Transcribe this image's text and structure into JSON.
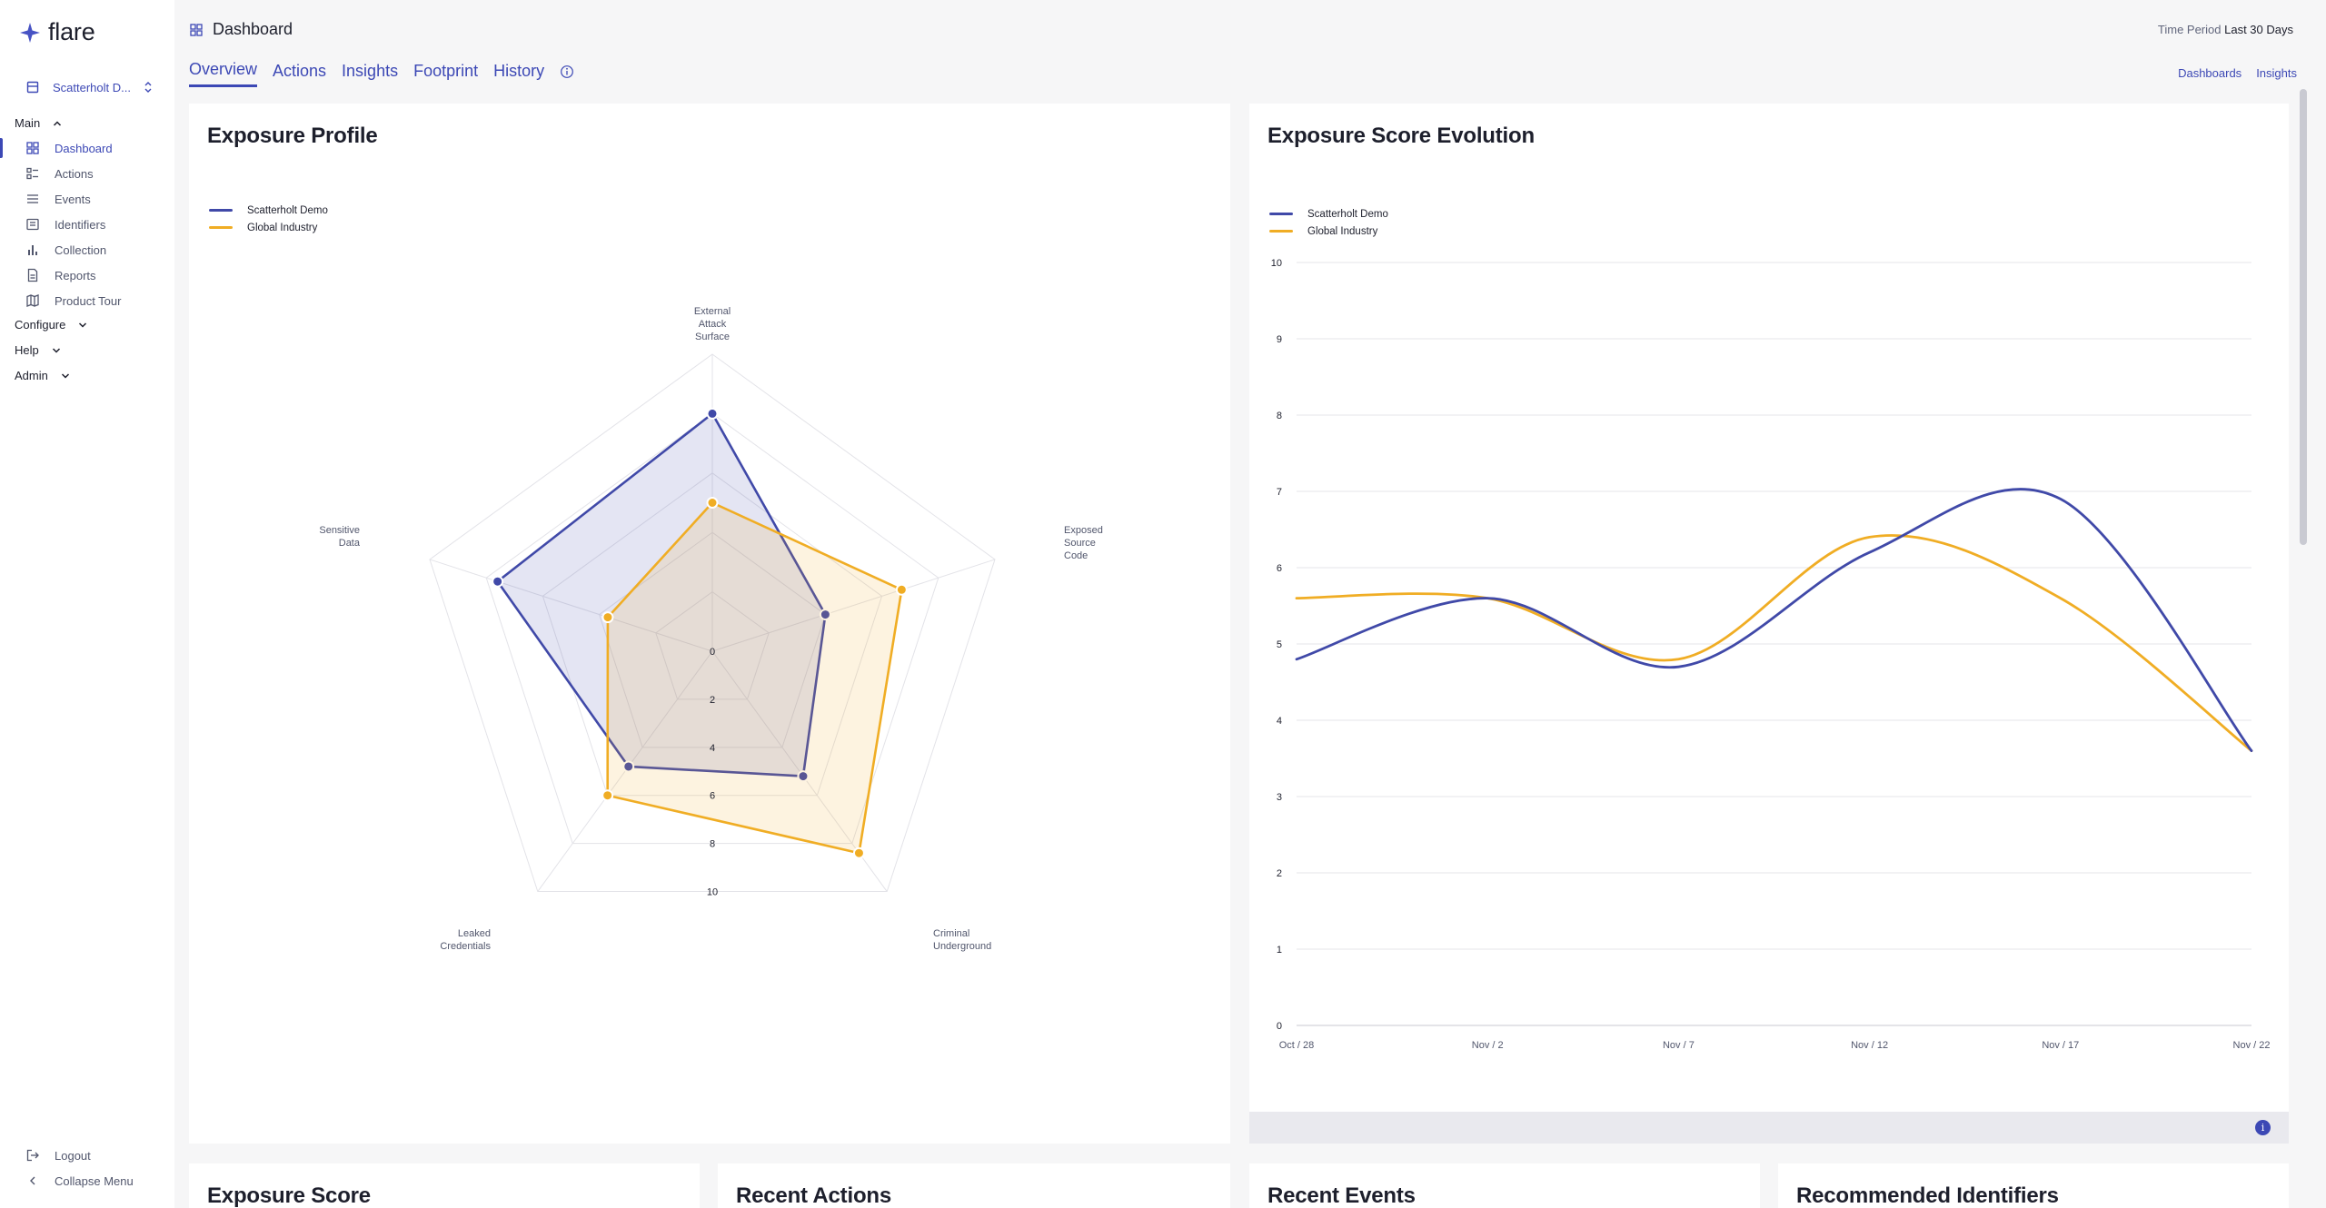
{
  "app": {
    "name": "flare"
  },
  "sidebar": {
    "org_name": "Scatterholt D...",
    "sections": [
      {
        "label": "Main"
      },
      {
        "label": "Configure"
      },
      {
        "label": "Help"
      },
      {
        "label": "Admin"
      }
    ],
    "items": [
      {
        "label": "Dashboard",
        "icon": "grid-icon"
      },
      {
        "label": "Actions",
        "icon": "actions-icon"
      },
      {
        "label": "Events",
        "icon": "list-icon"
      },
      {
        "label": "Identifiers",
        "icon": "identifiers-icon"
      },
      {
        "label": "Collection",
        "icon": "bar-chart-icon"
      },
      {
        "label": "Reports",
        "icon": "document-icon"
      },
      {
        "label": "Product Tour",
        "icon": "map-icon"
      }
    ],
    "footer": [
      {
        "label": "Logout",
        "icon": "logout-icon"
      },
      {
        "label": "Collapse Menu",
        "icon": "chevron-left-icon"
      }
    ]
  },
  "header": {
    "title": "Dashboard",
    "time_period_label": "Time Period",
    "time_period_value": "Last 30 Days",
    "tabs": [
      {
        "label": "Overview"
      },
      {
        "label": "Actions"
      },
      {
        "label": "Insights"
      },
      {
        "label": "Footprint"
      },
      {
        "label": "History"
      }
    ],
    "links": [
      {
        "label": "Dashboards"
      },
      {
        "label": "Insights"
      }
    ]
  },
  "colors": {
    "accent": "#3c48b5",
    "series_1": "#4049a8",
    "series_2": "#f0ad24"
  },
  "cards": {
    "exposure_profile": "Exposure Profile",
    "exposure_score_evolution": "Exposure Score Evolution",
    "exposure_score": "Exposure Score",
    "recent_actions": "Recent Actions",
    "recent_events": "Recent Events",
    "recommended_identifiers": "Recommended Identifiers"
  },
  "chart_data": [
    {
      "type": "radar",
      "title": "Exposure Profile",
      "axes": [
        "External Attack Surface",
        "Exposed Source Code",
        "Criminal Underground",
        "Leaked Credentials",
        "Sensitive Data"
      ],
      "axis_label_lines": [
        [
          "External",
          "Attack",
          "Surface"
        ],
        [
          "Exposed",
          "Source",
          "Code"
        ],
        [
          "Criminal",
          "Underground"
        ],
        [
          "Leaked",
          "Credentials"
        ],
        [
          "Sensitive",
          "Data"
        ]
      ],
      "radial_ticks": [
        0,
        2,
        4,
        6,
        8,
        10
      ],
      "range": [
        0,
        10
      ],
      "legend_position": "top-left",
      "series": [
        {
          "name": "Scatterholt Demo",
          "values": [
            8.0,
            4.0,
            5.2,
            4.8,
            7.6
          ]
        },
        {
          "name": "Global Industry",
          "values": [
            5.0,
            6.7,
            8.4,
            6.0,
            3.7
          ]
        }
      ]
    },
    {
      "type": "line",
      "title": "Exposure Score Evolution",
      "x": [
        "Oct / 28",
        "Nov / 2",
        "Nov / 7",
        "Nov / 12",
        "Nov / 17",
        "Nov / 22"
      ],
      "ylim": [
        0,
        10
      ],
      "yticks": [
        0,
        1,
        2,
        3,
        4,
        5,
        6,
        7,
        8,
        9,
        10
      ],
      "grid": true,
      "legend_position": "top-left",
      "series": [
        {
          "name": "Scatterholt Demo",
          "values": [
            4.8,
            5.6,
            4.7,
            6.2,
            6.9,
            3.6
          ]
        },
        {
          "name": "Global Industry",
          "values": [
            5.6,
            5.6,
            4.8,
            6.4,
            5.6,
            3.6
          ]
        }
      ]
    }
  ]
}
